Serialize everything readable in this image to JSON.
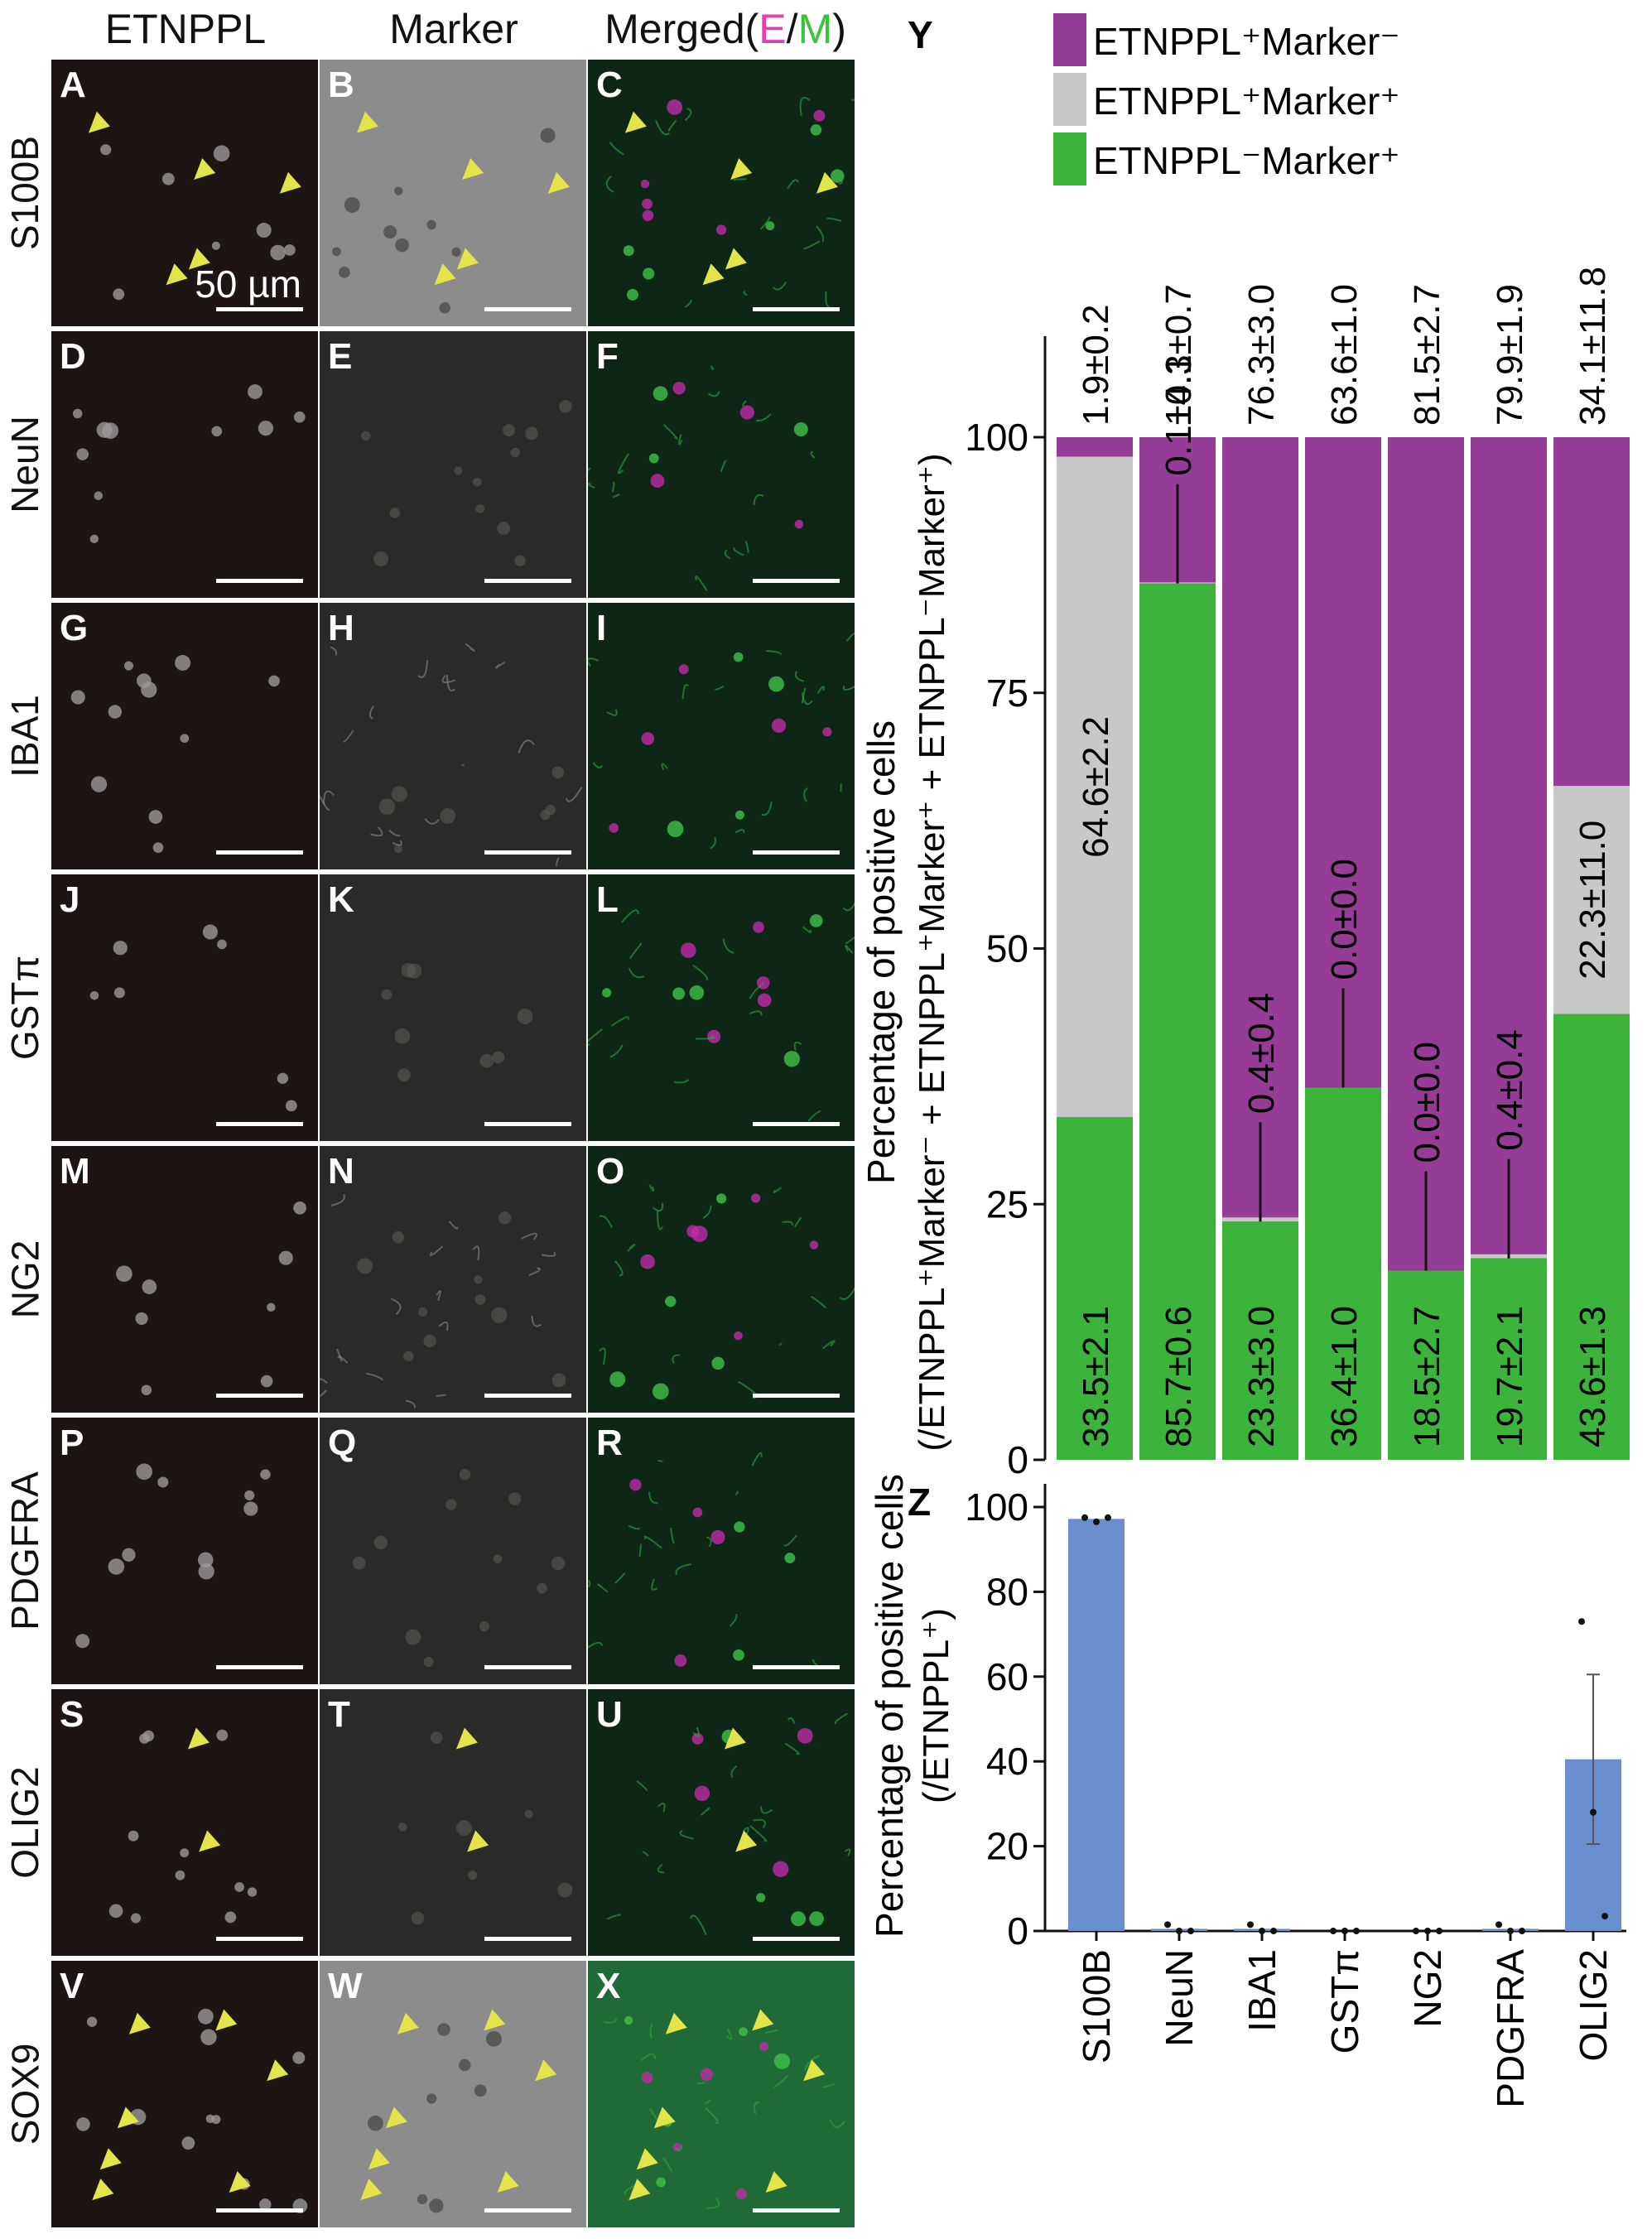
{
  "image_columns": [
    {
      "title_parts": [
        "ETNPPL"
      ]
    },
    {
      "title_parts": [
        "Marker"
      ]
    },
    {
      "title_parts": [
        "Merged(",
        "E",
        "/",
        "M",
        ")"
      ]
    }
  ],
  "rows": [
    {
      "marker": "S100B",
      "letters": [
        "A",
        "B",
        "C"
      ],
      "arrows": true
    },
    {
      "marker": "NeuN",
      "letters": [
        "D",
        "E",
        "F"
      ],
      "arrows": false
    },
    {
      "marker": "IBA1",
      "letters": [
        "G",
        "H",
        "I"
      ],
      "arrows": false
    },
    {
      "marker": "GSTπ",
      "letters": [
        "J",
        "K",
        "L"
      ],
      "arrows": false
    },
    {
      "marker": "NG2",
      "letters": [
        "M",
        "N",
        "O"
      ],
      "arrows": false
    },
    {
      "marker": "PDGFRA",
      "letters": [
        "P",
        "Q",
        "R"
      ],
      "arrows": false
    },
    {
      "marker": "OLIG2",
      "letters": [
        "S",
        "T",
        "U"
      ],
      "arrows": true
    },
    {
      "marker": "SOX9",
      "letters": [
        "V",
        "W",
        "X"
      ],
      "arrows": true
    }
  ],
  "scalebar_label": "50 µm",
  "colors": {
    "etnppl_pos_marker_neg": "#953c96",
    "double_pos": "#c8c8c8",
    "etnppl_neg_marker_pos": "#3cb43c",
    "bar_z": "#6a8fcf",
    "arrow": "#e3e34a",
    "panel_bg_dark": "#1c1513",
    "panel_bg_gray": "#2a2a28",
    "panel_bg_light": "#8c8c8c",
    "panel_bg_green": "#0e2616"
  },
  "chart_data": [
    {
      "panel_letter": "Y",
      "type": "bar",
      "stacked": true,
      "categories": [
        "S100B",
        "NeuN",
        "IBA1",
        "GSTπ",
        "NG2",
        "PDGFRA",
        "OLIG2"
      ],
      "series": [
        {
          "name": "ETNPPL⁻Marker⁺",
          "values": [
            33.5,
            85.7,
            23.3,
            36.4,
            18.5,
            19.7,
            43.6
          ],
          "labels": [
            "33.5±2.1",
            "85.7±0.6",
            "23.3±3.0",
            "36.4±1.0",
            "18.5±2.7",
            "19.7±2.1",
            "43.6±1.3"
          ]
        },
        {
          "name": "ETNPPL⁺Marker⁺",
          "values": [
            64.6,
            0.1,
            0.4,
            0.0,
            0.0,
            0.4,
            22.3
          ],
          "labels": [
            "64.6±2.2",
            "0.1±0.1",
            "0.4±0.4",
            "0.0±0.0",
            "0.0±0.0",
            "0.4±0.4",
            "22.3±11.0"
          ]
        },
        {
          "name": "ETNPPL⁺Marker⁻",
          "values": [
            1.9,
            14.3,
            76.3,
            63.6,
            81.5,
            79.9,
            34.1
          ],
          "labels": [
            "1.9±0.2",
            "14.3±0.7",
            "76.3±3.0",
            "63.6±1.0",
            "81.5±2.7",
            "79.9±1.9",
            "34.1±11.8"
          ]
        }
      ],
      "legend_order": [
        "ETNPPL⁺Marker⁻",
        "ETNPPL⁺Marker⁺",
        "ETNPPL⁻Marker⁺"
      ],
      "legend_position": "top",
      "ylabel": "Percentage of positive cells",
      "ylabel2": "(/ETNPPL⁺Marker⁻ + ETNPPL⁺Marker⁺ + ETNPPL⁻Marker⁺)",
      "ylim": [
        0,
        100
      ],
      "yticks": [
        0,
        25,
        50,
        75,
        100
      ],
      "grid": false
    },
    {
      "panel_letter": "Z",
      "type": "bar",
      "categories": [
        "S100B",
        "NeuN",
        "IBA1",
        "GSTπ",
        "NG2",
        "PDGFRA",
        "OLIG2"
      ],
      "values": [
        97.2,
        0.5,
        0.5,
        0.0,
        0.0,
        0.5,
        40.5
      ],
      "error": [
        0.5,
        0.4,
        0.4,
        0.0,
        0.0,
        0.4,
        20.0
      ],
      "points": [
        [
          97.5,
          96.5,
          97.5
        ],
        [
          1.5,
          0,
          0
        ],
        [
          1.5,
          0,
          0
        ],
        [
          0,
          0,
          0
        ],
        [
          0,
          0,
          0
        ],
        [
          1.5,
          0,
          0
        ],
        [
          73,
          28,
          3.5
        ]
      ],
      "ylabel": "Percentage of positive cells",
      "ylabel2": "(/ETNPPL⁺)",
      "ylim": [
        0,
        100
      ],
      "yticks": [
        0,
        20,
        40,
        60,
        80,
        100
      ],
      "grid": false
    }
  ]
}
